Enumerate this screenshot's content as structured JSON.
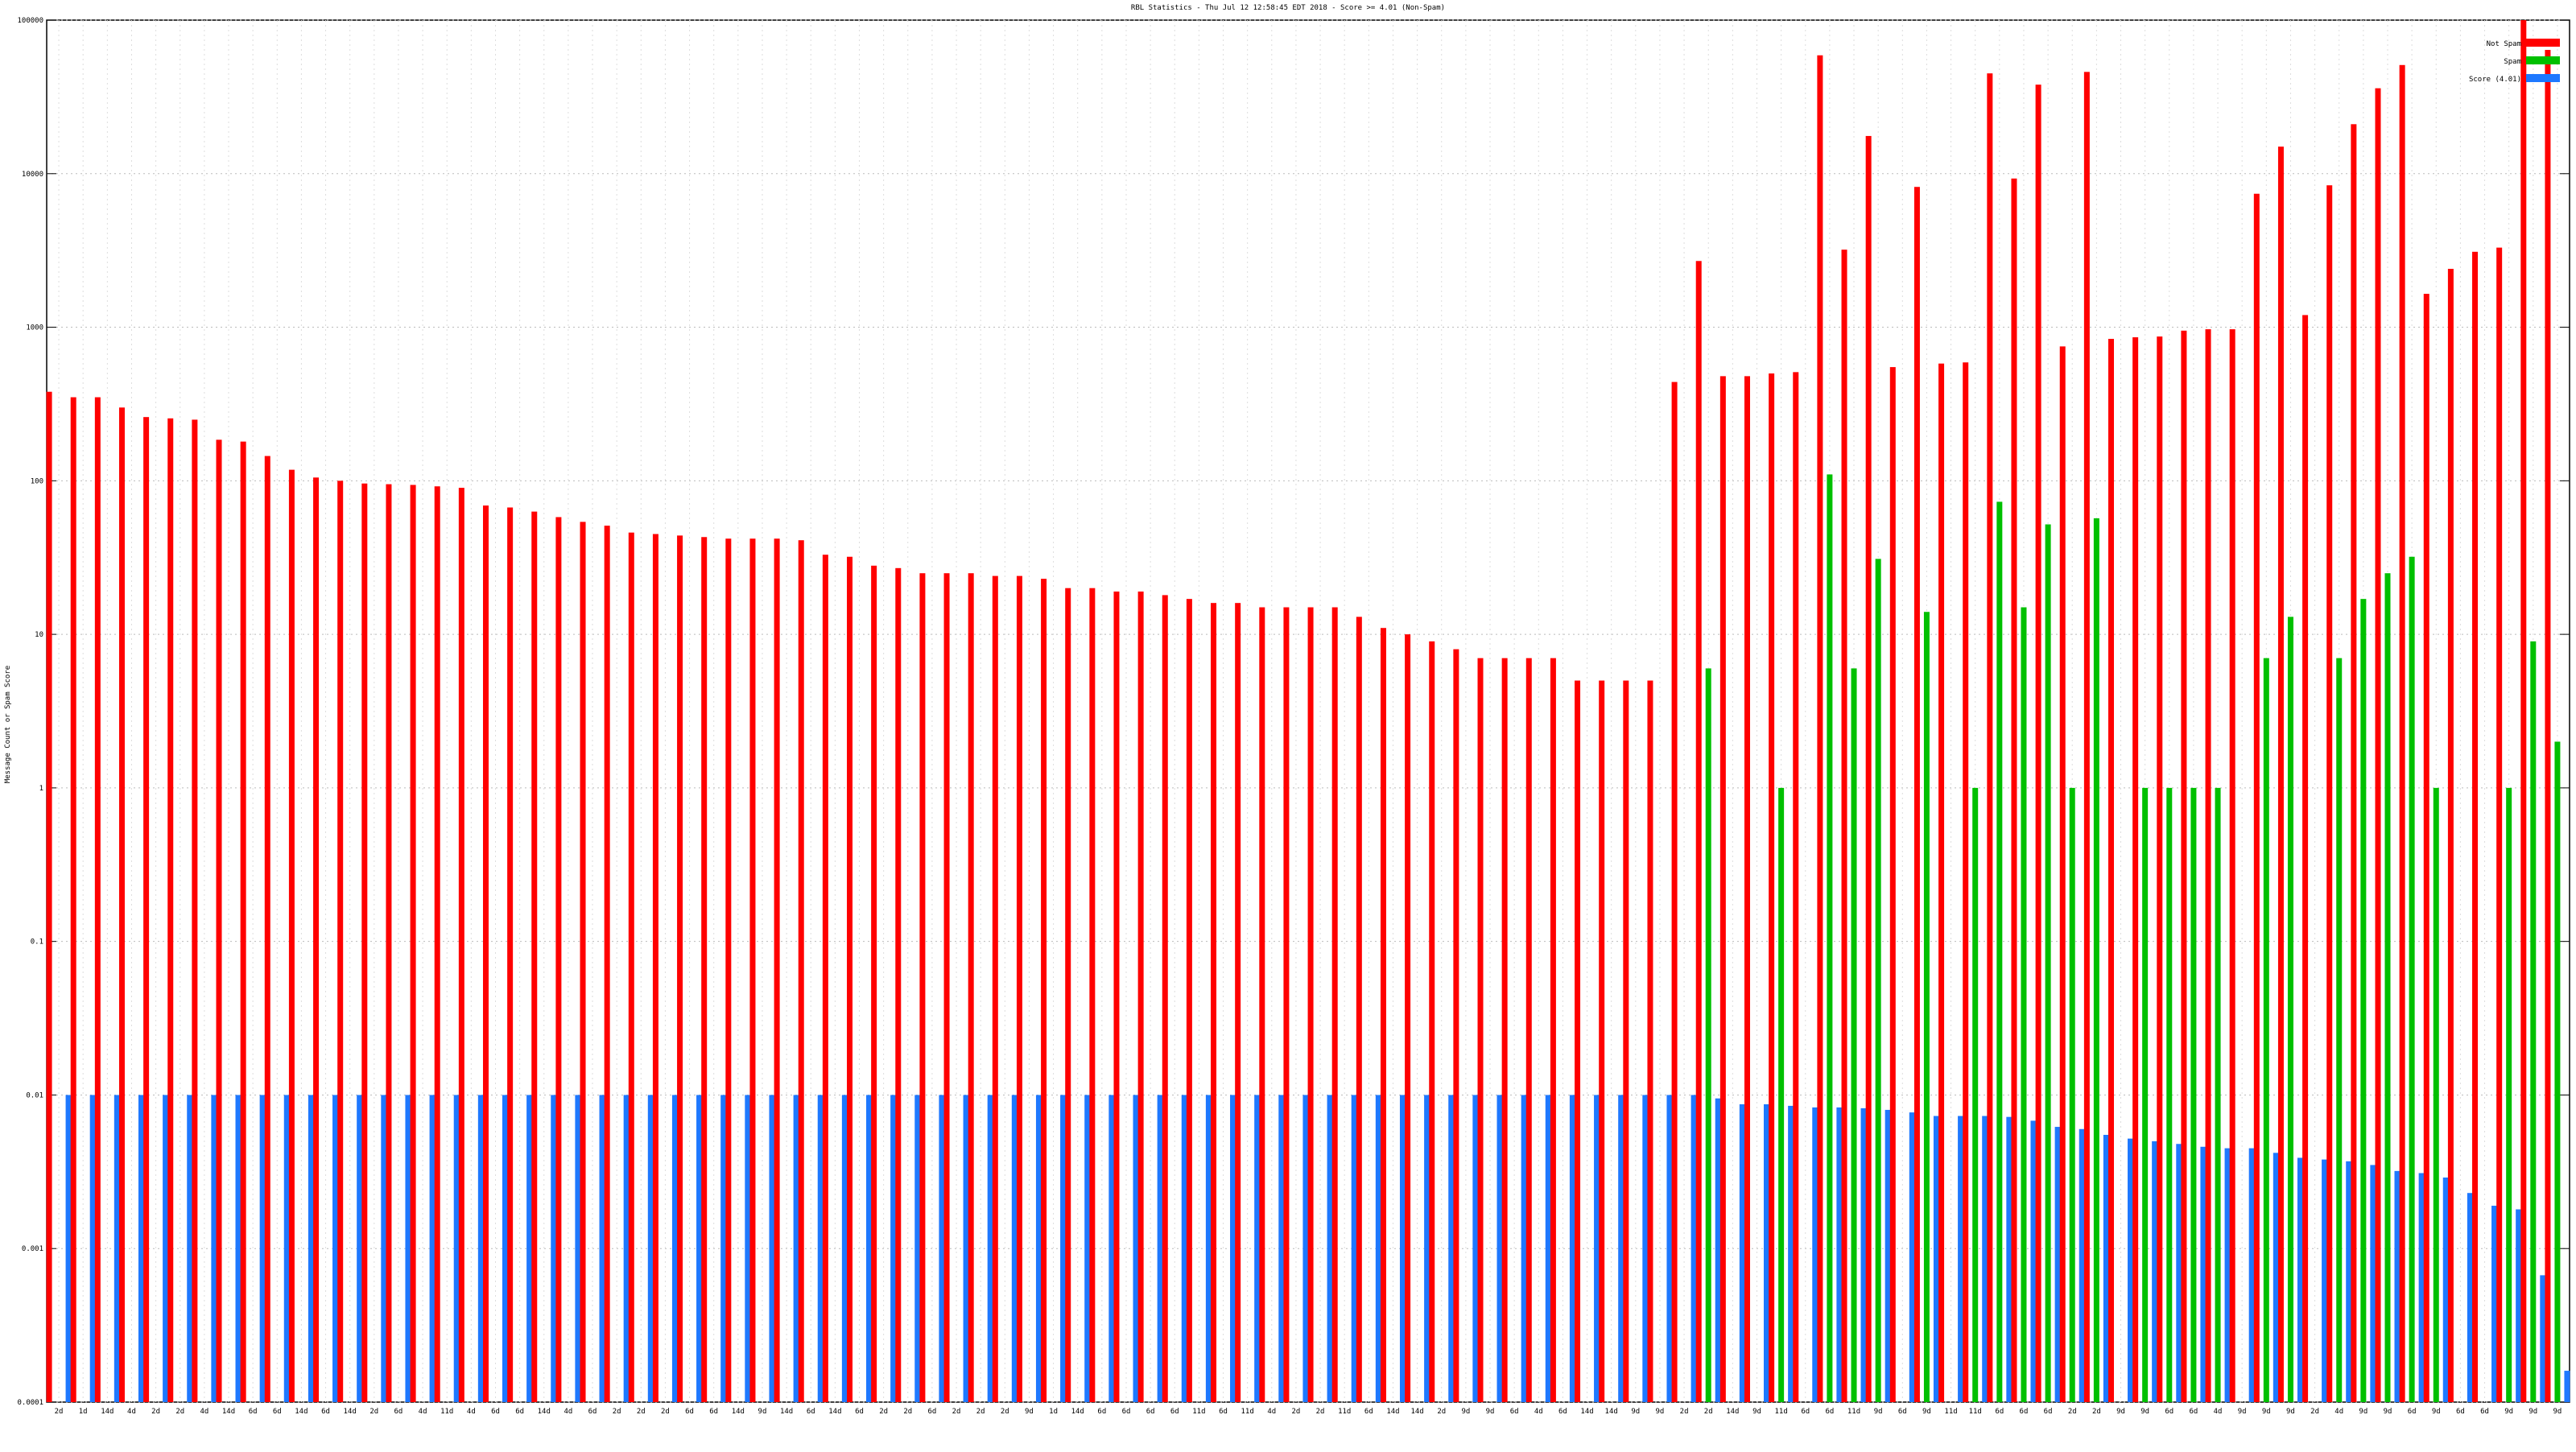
{
  "chart_data": {
    "type": "bar",
    "title": "RBL Statistics - Thu Jul 12 12:58:45 EDT 2018 - Score >= 4.01 (Non-Spam)",
    "ylabel": "Message Count or Spam Score",
    "log_scale": true,
    "grid": true,
    "legend": "upper right",
    "ylim": [
      0.0001,
      100000
    ],
    "yticks": [
      0.0001,
      0.001,
      0.01,
      0.1,
      1,
      10,
      100,
      1000,
      10000,
      100000
    ],
    "categories": [
      "2d",
      "1d",
      "14d",
      "4d",
      "2d",
      "2d",
      "4d",
      "14d",
      "6d",
      "6d",
      "14d",
      "6d",
      "14d",
      "2d",
      "6d",
      "4d",
      "11d",
      "4d",
      "6d",
      "6d",
      "14d",
      "4d",
      "6d",
      "2d",
      "2d",
      "2d",
      "6d",
      "6d",
      "14d",
      "9d",
      "14d",
      "6d",
      "14d",
      "6d",
      "2d",
      "2d",
      "6d",
      "2d",
      "2d",
      "2d",
      "9d",
      "1d",
      "14d",
      "6d",
      "6d",
      "6d",
      "6d",
      "11d",
      "6d",
      "11d",
      "4d",
      "2d",
      "2d",
      "11d",
      "6d",
      "14d",
      "14d",
      "2d",
      "9d",
      "9d",
      "6d",
      "4d",
      "6d",
      "14d",
      "14d",
      "9d",
      "9d",
      "2d",
      "2d",
      "14d",
      "9d",
      "11d",
      "6d",
      "6d",
      "11d",
      "9d",
      "6d",
      "9d",
      "11d",
      "11d",
      "6d",
      "6d",
      "6d",
      "2d",
      "2d",
      "9d",
      "9d",
      "6d",
      "6d",
      "4d",
      "9d",
      "9d",
      "9d",
      "2d",
      "4d",
      "9d",
      "9d",
      "6d",
      "9d",
      "6d",
      "6d",
      "9d",
      "9d",
      "9d"
    ],
    "series": [
      {
        "name": "Not Spam",
        "color": "#ff0000",
        "values": [
          380,
          350,
          350,
          300,
          260,
          255,
          250,
          185,
          180,
          145,
          118,
          105,
          100,
          96,
          95,
          94,
          92,
          90,
          69,
          67,
          63,
          58,
          54,
          51,
          46,
          45,
          44,
          43,
          42,
          42,
          42,
          41,
          33,
          32,
          28,
          27,
          25,
          25,
          25,
          24,
          24,
          23,
          20,
          20,
          19,
          19,
          18,
          17,
          16,
          16,
          15,
          15,
          15,
          15,
          13,
          11,
          10,
          9,
          8,
          7,
          7,
          7,
          7,
          5,
          5,
          5,
          5,
          440,
          2700,
          480,
          480,
          500,
          510,
          59000,
          3200,
          17600,
          550,
          8200,
          580,
          590,
          45000,
          9300,
          38000,
          750,
          46000,
          840,
          860,
          870,
          950,
          970,
          970,
          7400,
          15000,
          1200,
          8400,
          21000,
          36000,
          51000,
          1650,
          2400,
          3100,
          3300,
          100000,
          64000
        ]
      },
      {
        "name": "Spam",
        "color": "#00c000",
        "values": [
          null,
          null,
          null,
          null,
          null,
          null,
          null,
          null,
          null,
          null,
          null,
          null,
          null,
          null,
          null,
          null,
          null,
          null,
          null,
          null,
          null,
          null,
          null,
          null,
          null,
          null,
          null,
          null,
          null,
          null,
          null,
          null,
          null,
          null,
          null,
          null,
          null,
          null,
          null,
          null,
          null,
          null,
          null,
          null,
          null,
          null,
          null,
          null,
          null,
          null,
          null,
          null,
          null,
          null,
          null,
          null,
          null,
          null,
          null,
          null,
          null,
          null,
          null,
          null,
          null,
          null,
          null,
          null,
          6,
          null,
          null,
          1,
          null,
          110,
          6,
          31,
          null,
          14,
          null,
          1,
          73,
          15,
          52,
          1,
          57,
          null,
          1,
          1,
          1,
          1,
          null,
          7,
          13,
          null,
          7,
          17,
          25,
          32,
          1,
          null,
          null,
          1,
          9,
          2
        ]
      },
      {
        "name": "Score (4.01)",
        "color": "#1e78ff",
        "values": [
          0.01,
          0.01,
          0.01,
          0.01,
          0.01,
          0.01,
          0.01,
          0.01,
          0.01,
          0.01,
          0.01,
          0.01,
          0.01,
          0.01,
          0.01,
          0.01,
          0.01,
          0.01,
          0.01,
          0.01,
          0.01,
          0.01,
          0.01,
          0.01,
          0.01,
          0.01,
          0.01,
          0.01,
          0.01,
          0.01,
          0.01,
          0.01,
          0.01,
          0.01,
          0.01,
          0.01,
          0.01,
          0.01,
          0.01,
          0.01,
          0.01,
          0.01,
          0.01,
          0.01,
          0.01,
          0.01,
          0.01,
          0.01,
          0.01,
          0.01,
          0.01,
          0.01,
          0.01,
          0.01,
          0.01,
          0.01,
          0.01,
          0.01,
          0.01,
          0.01,
          0.01,
          0.01,
          0.01,
          0.01,
          0.01,
          0.01,
          0.01,
          0.01,
          0.0095,
          0.0087,
          0.0087,
          0.0085,
          0.0083,
          0.0083,
          0.0082,
          0.008,
          0.0077,
          0.0073,
          0.0073,
          0.0073,
          0.0072,
          0.0068,
          0.0062,
          0.006,
          0.0055,
          0.0052,
          0.005,
          0.0048,
          0.0046,
          0.0045,
          0.0045,
          0.0042,
          0.0039,
          0.0038,
          0.0037,
          0.0035,
          0.0032,
          0.0031,
          0.0029,
          0.0023,
          0.0019,
          0.0018,
          0.00067,
          0.00016
        ]
      }
    ]
  }
}
